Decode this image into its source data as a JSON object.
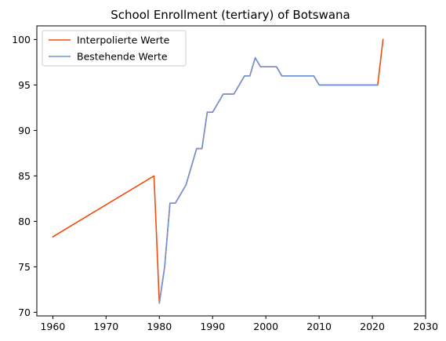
{
  "chart_data": {
    "type": "line",
    "title": "School Enrollment (tertiary) of Botswana",
    "xlabel": "",
    "ylabel": "",
    "xlim": [
      1957,
      2030
    ],
    "ylim": [
      69.6,
      101.5
    ],
    "xticks": [
      1960,
      1970,
      1980,
      1990,
      2000,
      2010,
      2020,
      2030
    ],
    "yticks": [
      70,
      75,
      80,
      85,
      90,
      95,
      100
    ],
    "grid": false,
    "legend": "top-left",
    "series": [
      {
        "name": "Interpolierte Werte",
        "color": "#f04e0c",
        "points": [
          [
            1960,
            78.3
          ],
          [
            1979,
            85.0
          ],
          [
            1980,
            71.0
          ],
          [
            1981,
            75.0
          ],
          [
            1982,
            82.0
          ],
          [
            1983,
            82.0
          ],
          [
            1985,
            84.0
          ],
          [
            1987,
            88.0
          ],
          [
            1988,
            88.0
          ],
          [
            1989,
            92.0
          ],
          [
            1990,
            92.0
          ],
          [
            1992,
            94.0
          ],
          [
            1994,
            94.0
          ],
          [
            1996,
            96.0
          ],
          [
            1997,
            96.0
          ],
          [
            1998,
            98.0
          ],
          [
            1999,
            97.0
          ],
          [
            2002,
            97.0
          ],
          [
            2003,
            96.0
          ],
          [
            2009,
            96.0
          ],
          [
            2010,
            95.0
          ],
          [
            2021,
            95.0
          ],
          [
            2022,
            100.0
          ]
        ]
      },
      {
        "name": "Bestehende Werte",
        "color": "#6f94dc",
        "points": [
          [
            1980,
            71.0
          ],
          [
            1981,
            75.0
          ],
          [
            1982,
            82.0
          ],
          [
            1983,
            82.0
          ],
          [
            1985,
            84.0
          ],
          [
            1987,
            88.0
          ],
          [
            1988,
            88.0
          ],
          [
            1989,
            92.0
          ],
          [
            1990,
            92.0
          ],
          [
            1992,
            94.0
          ],
          [
            1994,
            94.0
          ],
          [
            1996,
            96.0
          ],
          [
            1997,
            96.0
          ],
          [
            1998,
            98.0
          ],
          [
            1999,
            97.0
          ],
          [
            2002,
            97.0
          ],
          [
            2003,
            96.0
          ],
          [
            2009,
            96.0
          ],
          [
            2010,
            95.0
          ],
          [
            2021,
            95.0
          ]
        ]
      }
    ]
  }
}
